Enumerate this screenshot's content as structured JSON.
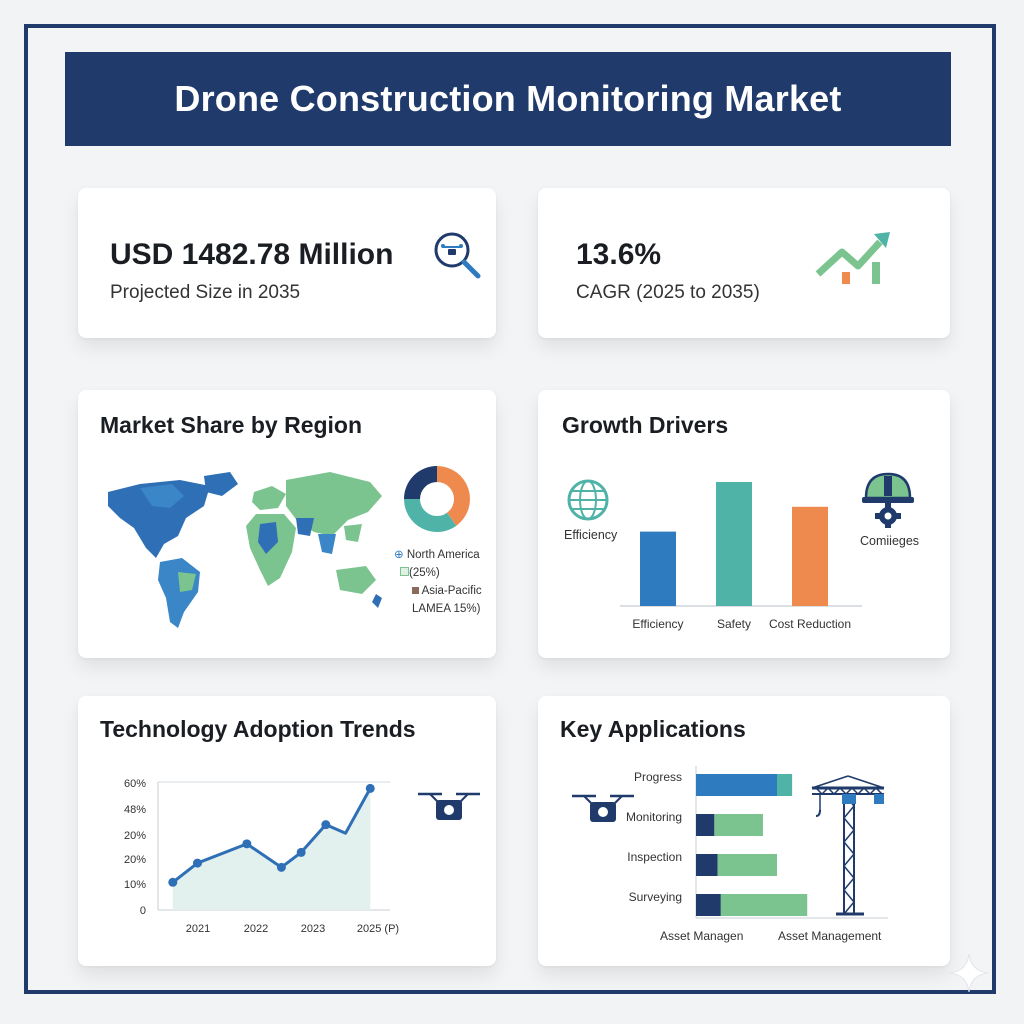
{
  "header": {
    "title": "Drone Construction Monitoring Market"
  },
  "stats": [
    {
      "value": "USD 1482.78 Million",
      "label": "Projected Size in 2035",
      "icon": "magnifier-drone-icon"
    },
    {
      "value": "13.6%",
      "label": "CAGR (2025 to 2035)",
      "icon": "trend-up-chart-icon"
    }
  ],
  "colors": {
    "navy": "#1f3a6b",
    "blue": "#2e7bbf",
    "teal": "#4fb3a7",
    "orange": "#ef8a4f",
    "green": "#7cc48f"
  },
  "region": {
    "title": "Market Share by Region",
    "legend": [
      "North America",
      "(25%)",
      "Asia-Pacific",
      "LAMEA  15%)"
    ]
  },
  "drivers": {
    "title": "Growth Drivers",
    "side_left": "Efficiency",
    "side_right": "Comiieges"
  },
  "trends": {
    "title": "Technology Adoption Trends"
  },
  "applications": {
    "title": "Key Applications",
    "x_labels": [
      "Asset Managen",
      "Asset Management"
    ]
  },
  "chart_data": [
    {
      "type": "pie",
      "labels": [
        "",
        "",
        ""
      ],
      "values": [
        40,
        35,
        25
      ],
      "colors": [
        "#ef8a4f",
        "#4fb3a7",
        "#1f3a6b"
      ]
    },
    {
      "type": "bar",
      "categories": [
        "Efficiency",
        "Safety",
        "Cost Reduction"
      ],
      "values": [
        60,
        100,
        80
      ],
      "colors": [
        "#2e7bbf",
        "#4fb3a7",
        "#ef8a4f"
      ]
    },
    {
      "type": "line",
      "x_ticks": [
        "2021",
        "2022",
        "2023",
        "2025 (P)"
      ],
      "y_ticks": [
        "0",
        "10%",
        "20%",
        "20%",
        "48%",
        "60%"
      ],
      "x": [
        2020.5,
        2021,
        2022,
        2022.7,
        2023.1,
        2023.6,
        2024,
        2024.5
      ],
      "y": [
        13,
        22,
        31,
        20,
        27,
        40,
        36,
        57
      ],
      "xlim": [
        2020.2,
        2024.9
      ],
      "ylim": [
        0,
        60
      ]
    },
    {
      "type": "bar",
      "orientation": "horizontal",
      "stacked": true,
      "categories": [
        "Progress",
        "Monitoring",
        "Inspection",
        "Surveying"
      ],
      "series": [
        {
          "values": [
            75,
            17,
            20,
            23
          ],
          "color": "#1f3a6b"
        },
        {
          "values": [
            0,
            45,
            55,
            80
          ],
          "color": "#7cc48f"
        }
      ],
      "progress_segments": [
        75,
        14
      ],
      "progress_colors": [
        "#2e7bbf",
        "#4fb3a7"
      ],
      "xlim": [
        0,
        130
      ]
    }
  ]
}
